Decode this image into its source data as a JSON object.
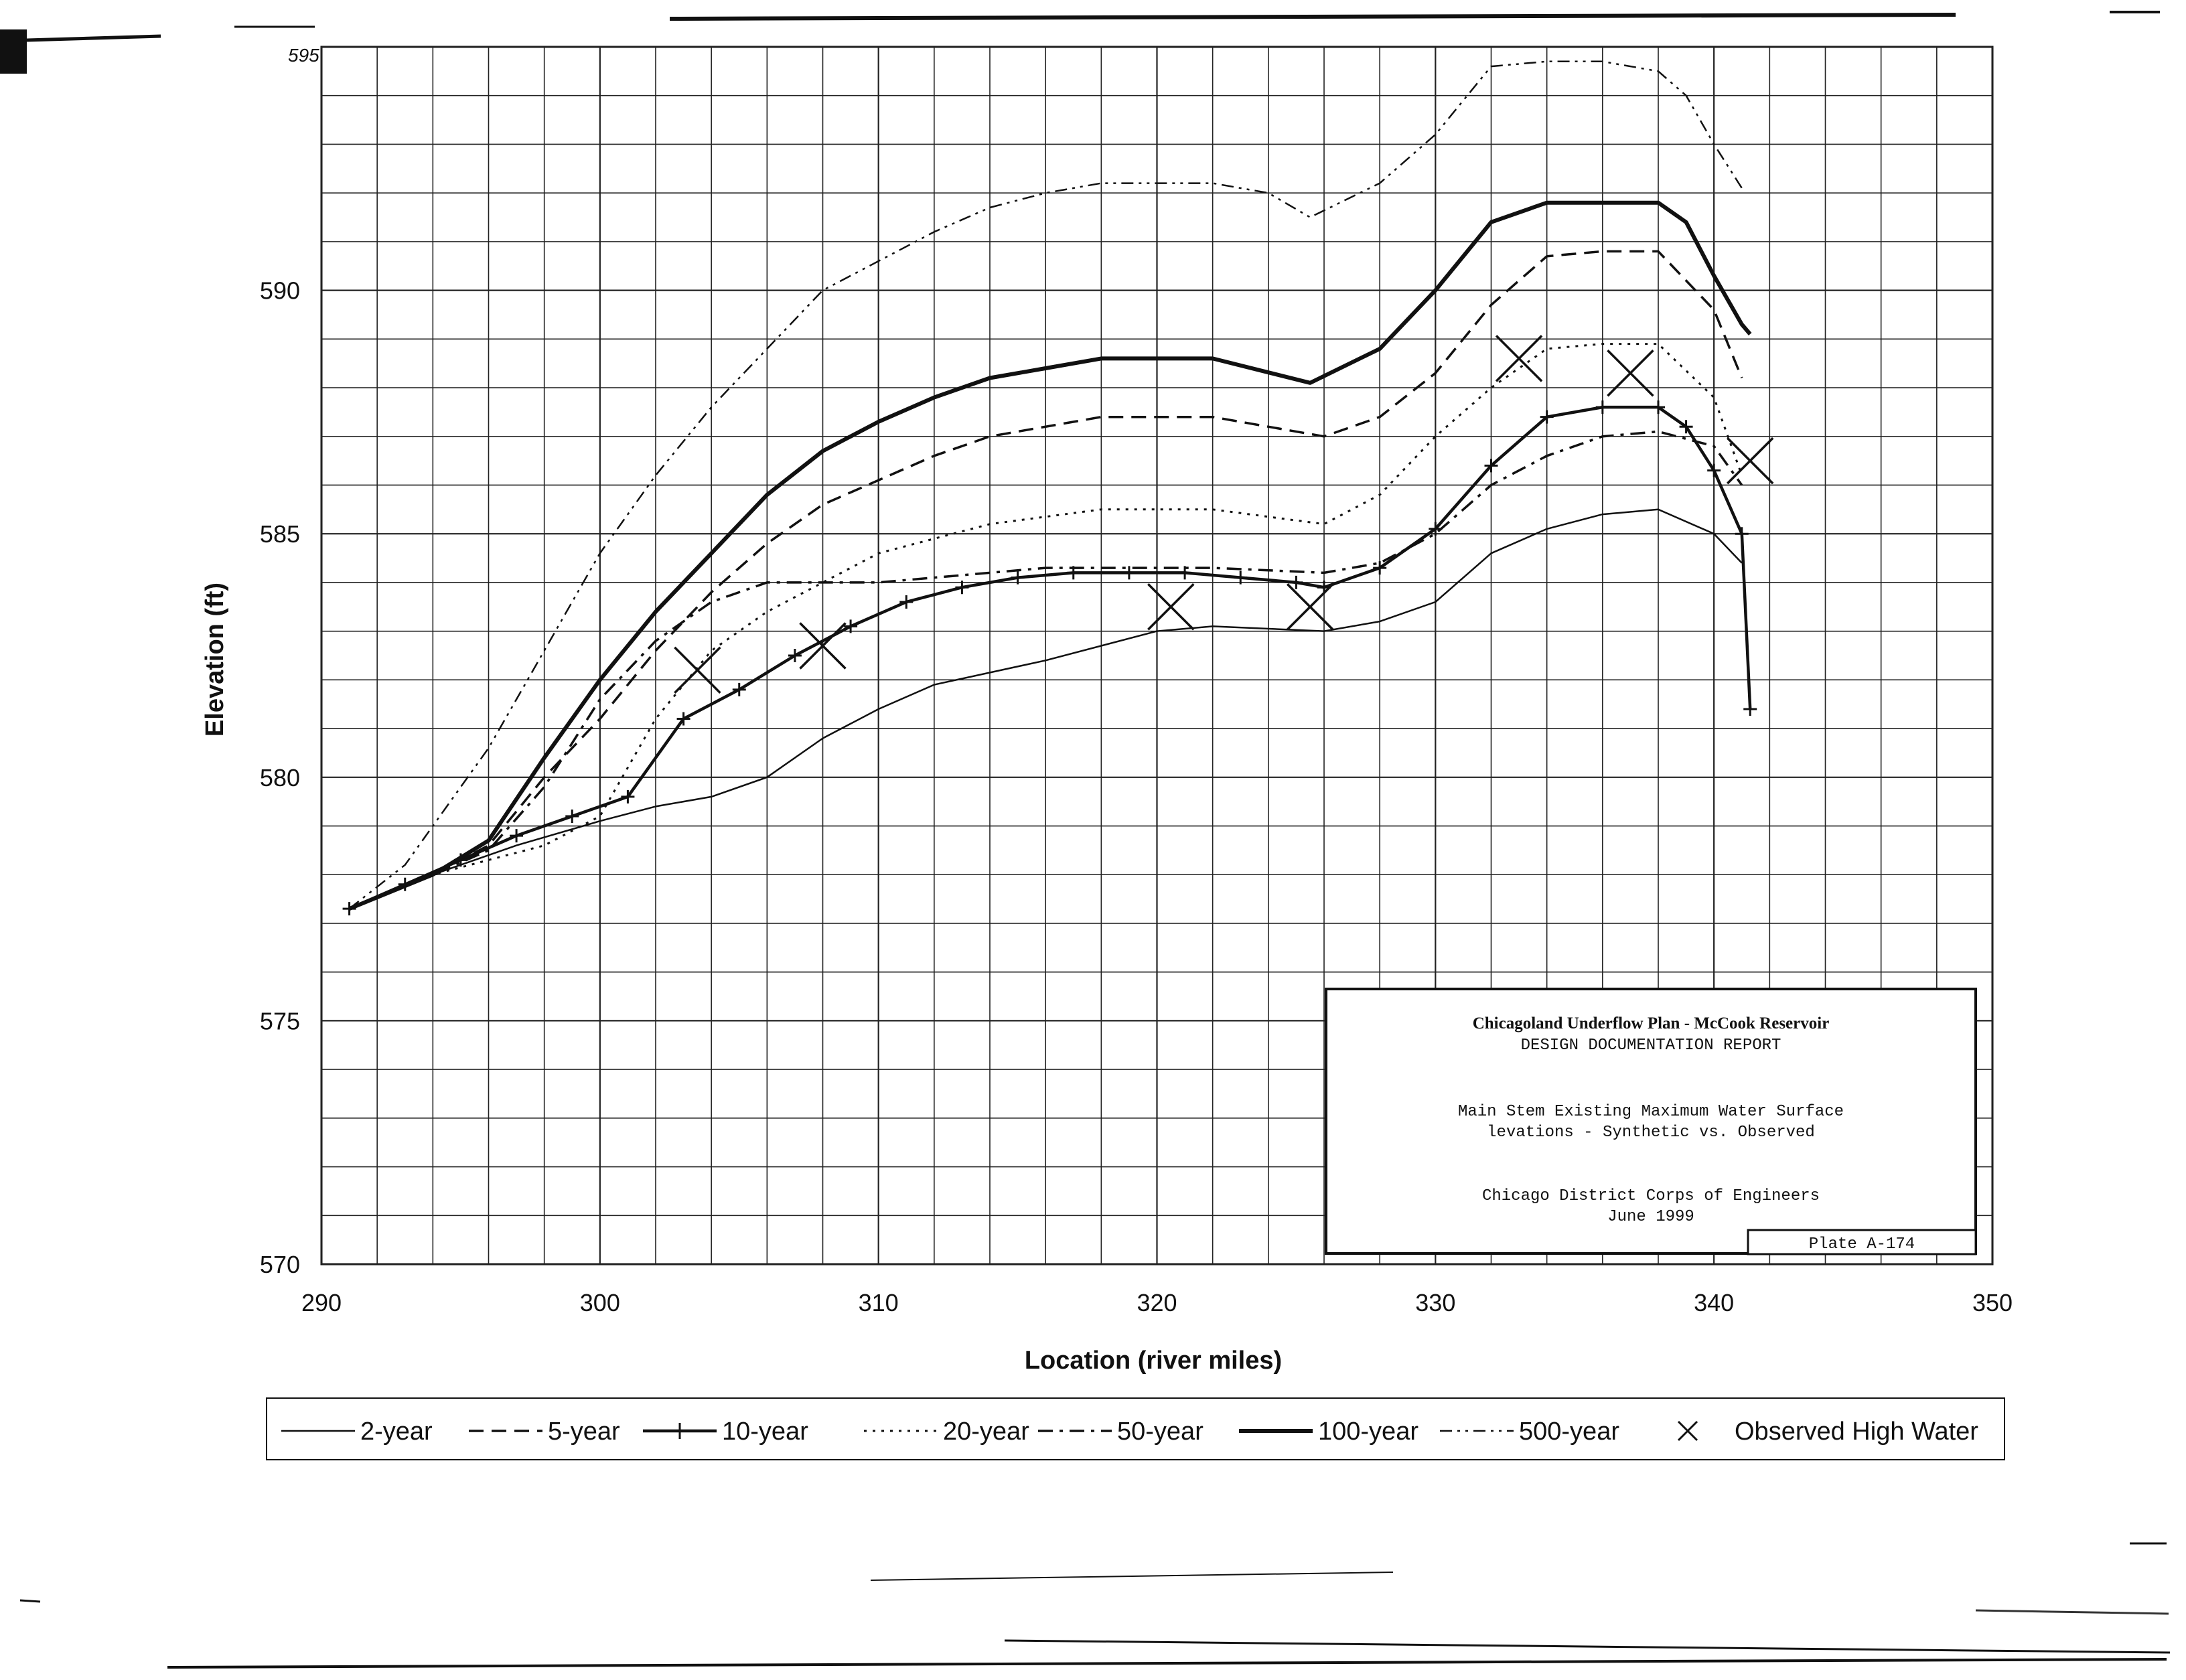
{
  "chart_data": {
    "type": "line",
    "title": "",
    "xlabel": "Location (river miles)",
    "ylabel": "Elevation (ft)",
    "xlim": [
      290,
      350
    ],
    "ylim": [
      570,
      595
    ],
    "x_ticks": [
      "290",
      "300",
      "310",
      "320",
      "330",
      "340",
      "350"
    ],
    "y_ticks": [
      "570",
      "575",
      "580",
      "585",
      "590"
    ],
    "top_tick": "595",
    "grid": true,
    "legend_position": "bottom",
    "series": [
      {
        "name": "2-year",
        "style": "solid-thin",
        "x": [
          291,
          294,
          297,
          300,
          302,
          304,
          306,
          308,
          310,
          312,
          316,
          320,
          322,
          326,
          328,
          330,
          332,
          334,
          336,
          338,
          340,
          341
        ],
        "y": [
          577.3,
          578.0,
          578.6,
          579.1,
          579.4,
          579.6,
          580.0,
          580.8,
          581.4,
          581.9,
          582.4,
          583.0,
          583.1,
          583.0,
          583.2,
          583.6,
          584.6,
          585.1,
          585.4,
          585.5,
          585.0,
          584.4
        ]
      },
      {
        "name": "5-year",
        "style": "dashed",
        "x": [
          291,
          294,
          296,
          298,
          300,
          302,
          304,
          306,
          308,
          310,
          312,
          314,
          318,
          322,
          326,
          328,
          330,
          332,
          334,
          336,
          338,
          340,
          341
        ],
        "y": [
          577.3,
          578.0,
          578.6,
          580.0,
          581.2,
          582.6,
          583.8,
          584.8,
          585.6,
          586.1,
          586.6,
          587.0,
          587.4,
          587.4,
          587.0,
          587.4,
          588.3,
          589.7,
          590.7,
          590.8,
          590.8,
          589.6,
          588.2
        ]
      },
      {
        "name": "10-year",
        "style": "solid-plus",
        "x": [
          291,
          293,
          295,
          297,
          299,
          301,
          303,
          305,
          307,
          309,
          311,
          313,
          315,
          317,
          319,
          321,
          323,
          325,
          326,
          328,
          330,
          332,
          334,
          336,
          338,
          339,
          340,
          341,
          341.3
        ],
        "y": [
          577.3,
          577.8,
          578.3,
          578.8,
          579.2,
          579.6,
          581.2,
          581.8,
          582.5,
          583.1,
          583.6,
          583.9,
          584.1,
          584.2,
          584.2,
          584.2,
          584.1,
          584.0,
          583.9,
          584.3,
          585.1,
          586.4,
          587.4,
          587.6,
          587.6,
          587.2,
          586.3,
          585.0,
          581.4
        ]
      },
      {
        "name": "20-year",
        "style": "dotted",
        "x": [
          291,
          294,
          296,
          298,
          300,
          302,
          304,
          306,
          308,
          310,
          314,
          318,
          322,
          326,
          328,
          330,
          332,
          334,
          336,
          338,
          340,
          341
        ],
        "y": [
          577.3,
          578.0,
          578.3,
          578.6,
          579.2,
          581.2,
          582.6,
          583.4,
          584.0,
          584.6,
          585.2,
          585.5,
          585.5,
          585.2,
          585.8,
          587.0,
          588.0,
          588.8,
          588.9,
          588.9,
          587.8,
          586.2
        ]
      },
      {
        "name": "50-year",
        "style": "dash-dot",
        "x": [
          291,
          294,
          296,
          298,
          300,
          302,
          304,
          306,
          308,
          310,
          312,
          314,
          316,
          318,
          322,
          326,
          328,
          330,
          332,
          334,
          336,
          338,
          340,
          341
        ],
        "y": [
          577.3,
          578.0,
          578.5,
          579.8,
          581.6,
          582.8,
          583.6,
          584.0,
          584.0,
          584.0,
          584.1,
          584.2,
          584.3,
          584.3,
          584.3,
          584.2,
          584.4,
          585.0,
          586.0,
          586.6,
          587.0,
          587.1,
          586.8,
          586.0
        ]
      },
      {
        "name": "100-year",
        "style": "solid-bold",
        "x": [
          291,
          294,
          296,
          298,
          300,
          302,
          304,
          306,
          308,
          310,
          312,
          314,
          316,
          318,
          322,
          325.5,
          328,
          330,
          332,
          334,
          336,
          338,
          339,
          340,
          341,
          341.3
        ],
        "y": [
          577.3,
          578.0,
          578.7,
          580.4,
          582.0,
          583.4,
          584.6,
          585.8,
          586.7,
          587.3,
          587.8,
          588.2,
          588.4,
          588.6,
          588.6,
          588.1,
          588.8,
          590.0,
          591.4,
          591.8,
          591.8,
          591.8,
          591.4,
          590.3,
          589.3,
          589.1
        ]
      },
      {
        "name": "500-year",
        "style": "dash-dot-dot",
        "x": [
          291,
          293,
          294,
          296,
          298,
          300,
          302,
          304,
          306,
          308,
          310,
          312,
          314,
          316,
          318,
          320,
          322,
          324,
          325.5,
          328,
          330,
          332,
          334,
          336,
          338,
          339,
          340,
          341
        ],
        "y": [
          577.3,
          578.2,
          579.0,
          580.6,
          582.6,
          584.6,
          586.2,
          587.6,
          588.8,
          590.0,
          590.6,
          591.2,
          591.7,
          592.0,
          592.2,
          592.2,
          592.2,
          592.0,
          591.5,
          592.2,
          593.2,
          594.6,
          594.7,
          594.7,
          594.5,
          594.0,
          593.0,
          592.1
        ]
      },
      {
        "name": "Observed High Water",
        "style": "x-marker",
        "x": [
          303.5,
          308,
          320.5,
          325.5,
          333,
          337,
          341.3
        ],
        "y": [
          582.2,
          582.7,
          583.5,
          583.5,
          588.6,
          588.3,
          586.5
        ]
      }
    ]
  },
  "legend": {
    "items": [
      "2-year",
      "5-year",
      "10-year",
      "20-year",
      "50-year",
      "100-year",
      "500-year",
      "Observed High Water"
    ]
  },
  "title_block": {
    "line1": "Chicagoland Underflow Plan - McCook Reservoir",
    "line2": "DESIGN DOCUMENTATION REPORT",
    "line3": "Main Stem Existing Maximum Water Surface",
    "line4": "levations - Synthetic vs. Observed",
    "line5": "Chicago District  Corps of Engineers",
    "line6": "June 1999",
    "plate": "Plate A-174"
  }
}
